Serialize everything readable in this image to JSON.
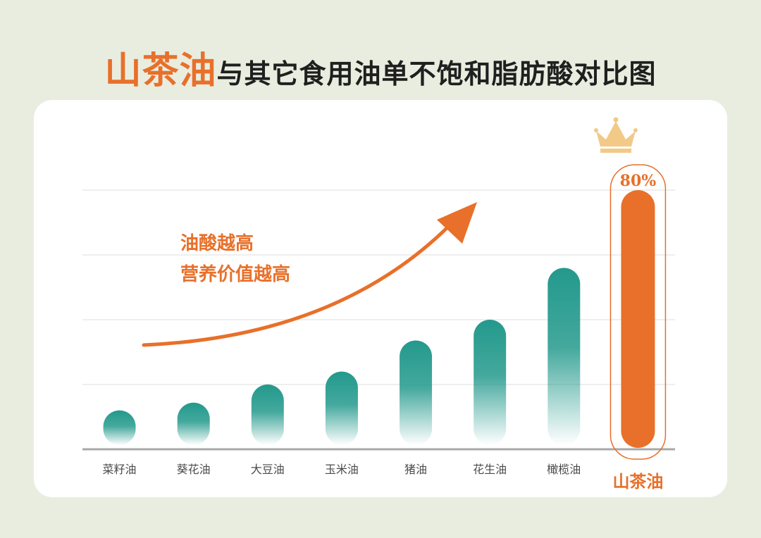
{
  "title": {
    "highlight": "山茶油",
    "rest": "与其它食用油单不饱和脂肪酸对比图"
  },
  "annotation": {
    "line1": "油酸越高",
    "line2": "营养价值越高"
  },
  "colors": {
    "background": "#e9ede0",
    "accent": "#e8702a",
    "bar": "#23998c",
    "crown": "#f2c987"
  },
  "icons": {
    "crown": "crown-icon",
    "trend_arrow": "trend-arrow"
  },
  "chart_data": {
    "type": "bar",
    "categories": [
      "菜籽油",
      "葵花油",
      "大豆油",
      "玉米油",
      "猪油",
      "花生油",
      "橄榄油",
      "山茶油"
    ],
    "values": [
      15,
      18,
      25,
      30,
      42,
      50,
      70,
      80
    ],
    "highlight_index": 7,
    "highlight_value_label": "80%",
    "ylim": [
      0,
      100
    ],
    "grid": true,
    "title": "",
    "xlabel": "",
    "ylabel": ""
  }
}
